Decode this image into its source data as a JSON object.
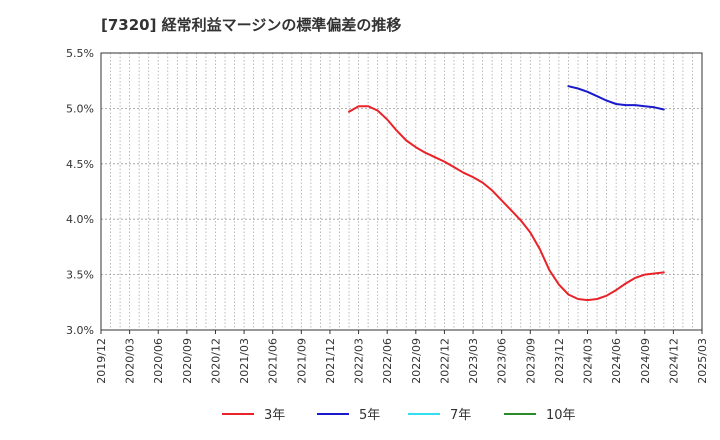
{
  "chart_data": {
    "type": "line",
    "title": "[7320]  経常利益マージンの標準偏差の推移",
    "xlabel": "",
    "ylabel": "",
    "x_ticks": [
      "2019/12",
      "2020/03",
      "2020/06",
      "2020/09",
      "2020/12",
      "2021/03",
      "2021/06",
      "2021/09",
      "2021/12",
      "2022/03",
      "2022/06",
      "2022/09",
      "2022/12",
      "2023/03",
      "2023/06",
      "2023/09",
      "2023/12",
      "2024/03",
      "2024/06",
      "2024/09",
      "2024/12",
      "2025/03"
    ],
    "y_ticks": [
      "3.0%",
      "3.5%",
      "4.0%",
      "4.5%",
      "5.0%",
      "5.5%"
    ],
    "ylim": [
      3.0,
      5.5
    ],
    "grid": true,
    "legend_position": "bottom",
    "series": [
      {
        "name": "3年",
        "color": "#e8232a",
        "points": [
          [
            "2022/02",
            4.97
          ],
          [
            "2022/03",
            5.02
          ],
          [
            "2022/04",
            5.02
          ],
          [
            "2022/05",
            4.98
          ],
          [
            "2022/06",
            4.9
          ],
          [
            "2022/07",
            4.8
          ],
          [
            "2022/08",
            4.71
          ],
          [
            "2022/09",
            4.65
          ],
          [
            "2022/10",
            4.6
          ],
          [
            "2022/11",
            4.56
          ],
          [
            "2022/12",
            4.52
          ],
          [
            "2023/01",
            4.47
          ],
          [
            "2023/02",
            4.42
          ],
          [
            "2023/03",
            4.38
          ],
          [
            "2023/04",
            4.33
          ],
          [
            "2023/05",
            4.26
          ],
          [
            "2023/06",
            4.17
          ],
          [
            "2023/07",
            4.08
          ],
          [
            "2023/08",
            3.99
          ],
          [
            "2023/09",
            3.88
          ],
          [
            "2023/10",
            3.73
          ],
          [
            "2023/11",
            3.54
          ],
          [
            "2023/12",
            3.41
          ],
          [
            "2024/01",
            3.32
          ],
          [
            "2024/02",
            3.28
          ],
          [
            "2024/03",
            3.27
          ],
          [
            "2024/04",
            3.28
          ],
          [
            "2024/05",
            3.31
          ],
          [
            "2024/06",
            3.36
          ],
          [
            "2024/07",
            3.42
          ],
          [
            "2024/08",
            3.47
          ],
          [
            "2024/09",
            3.5
          ],
          [
            "2024/10",
            3.51
          ],
          [
            "2024/11",
            3.52
          ]
        ]
      },
      {
        "name": "5年",
        "color": "#1a1acc",
        "points": [
          [
            "2024/01",
            5.2
          ],
          [
            "2024/02",
            5.18
          ],
          [
            "2024/03",
            5.15
          ],
          [
            "2024/04",
            5.11
          ],
          [
            "2024/05",
            5.07
          ],
          [
            "2024/06",
            5.04
          ],
          [
            "2024/07",
            5.03
          ],
          [
            "2024/08",
            5.03
          ],
          [
            "2024/09",
            5.02
          ],
          [
            "2024/10",
            5.01
          ],
          [
            "2024/11",
            4.99
          ]
        ]
      },
      {
        "name": "7年",
        "color": "#33e0f0",
        "points": []
      },
      {
        "name": "10年",
        "color": "#2a8a2a",
        "points": []
      }
    ]
  }
}
